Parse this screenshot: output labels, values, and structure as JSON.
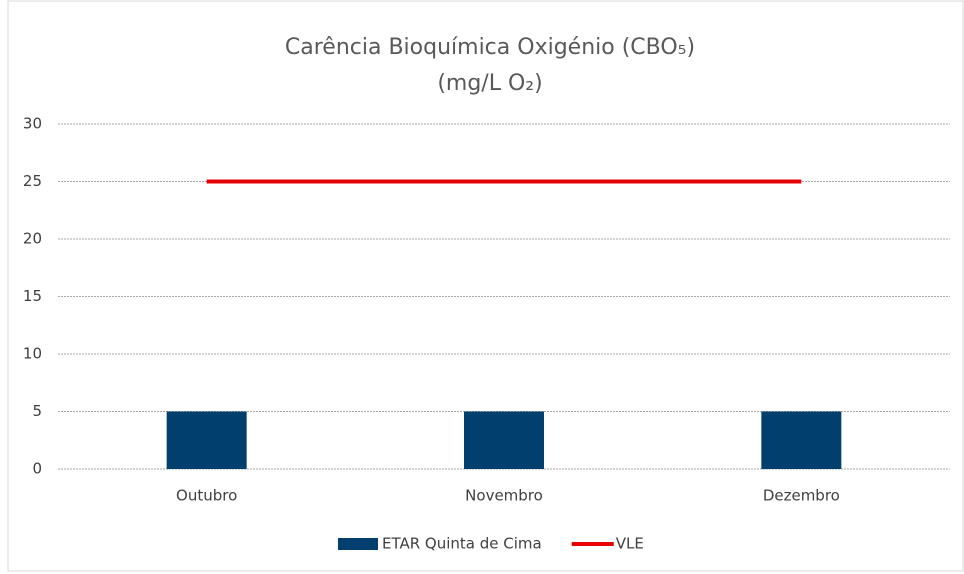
{
  "chart_data": {
    "type": "bar",
    "title": "Carência Bioquímica Oxigénio (CBO₅)",
    "subtitle": "(mg/L O₂)",
    "categories": [
      "Outubro",
      "Novembro",
      "Dezembro"
    ],
    "series": [
      {
        "name": "ETAR Quinta de Cima",
        "type": "bar",
        "color": "#003f6e",
        "values": [
          5,
          5,
          5
        ]
      },
      {
        "name": "VLE",
        "type": "line",
        "color": "#e60000",
        "values": [
          25,
          25,
          25
        ]
      }
    ],
    "ylim": [
      0,
      30
    ],
    "yticks": [
      0,
      5,
      10,
      15,
      20,
      25,
      30
    ],
    "grid": true,
    "legend": "bottom"
  }
}
